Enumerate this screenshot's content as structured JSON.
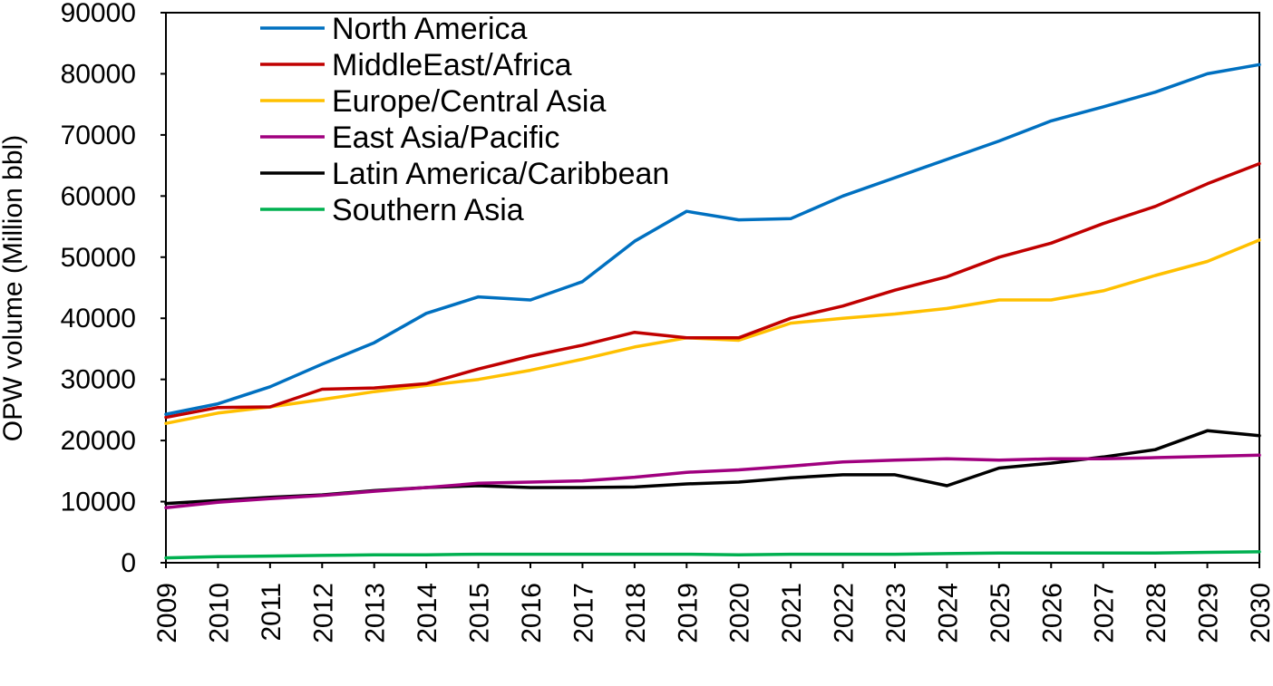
{
  "chart_data": {
    "type": "line",
    "title": "",
    "xlabel": "",
    "ylabel": "OPW volume (Million bbl)",
    "ylim": [
      0,
      90000
    ],
    "yticks": [
      0,
      10000,
      20000,
      30000,
      40000,
      50000,
      60000,
      70000,
      80000,
      90000
    ],
    "x": [
      "2009",
      "2010",
      "2011",
      "2012",
      "2013",
      "2014",
      "2015",
      "2016",
      "2017",
      "2018",
      "2019",
      "2020",
      "2021",
      "2022",
      "2023",
      "2024",
      "2025",
      "2026",
      "2027",
      "2028",
      "2029",
      "2030"
    ],
    "legend_position": "top-left",
    "series": [
      {
        "name": "North America",
        "color": "#0070C0",
        "values": [
          24300,
          26000,
          28800,
          32500,
          36000,
          40800,
          43500,
          43000,
          46000,
          52600,
          57500,
          56100,
          56300,
          60000,
          63000,
          66000,
          69000,
          72300,
          74600,
          77000,
          80000,
          81500
        ]
      },
      {
        "name": "MiddleEast/Africa",
        "color": "#C00000",
        "values": [
          23800,
          25400,
          25500,
          28400,
          28600,
          29300,
          31700,
          33800,
          35600,
          37700,
          36800,
          36800,
          40000,
          42000,
          44600,
          46800,
          50000,
          52300,
          55500,
          58300,
          62000,
          65300
        ]
      },
      {
        "name": "Europe/Central Asia",
        "color": "#FFC000",
        "values": [
          22800,
          24500,
          25500,
          26700,
          28000,
          29000,
          30000,
          31500,
          33300,
          35300,
          36800,
          36400,
          39200,
          40000,
          40700,
          41600,
          43000,
          43000,
          44500,
          47000,
          49300,
          52800
        ]
      },
      {
        "name": "East Asia/Pacific",
        "color": "#A0007F",
        "values": [
          9000,
          9900,
          10500,
          11000,
          11700,
          12300,
          13000,
          13200,
          13400,
          14000,
          14800,
          15200,
          15800,
          16500,
          16800,
          17000,
          16800,
          17000,
          17000,
          17200,
          17400,
          17600
        ]
      },
      {
        "name": "Latin America/Caribbean",
        "color": "#000000",
        "values": [
          9700,
          10200,
          10700,
          11100,
          11800,
          12300,
          12600,
          12300,
          12300,
          12400,
          12900,
          13200,
          13900,
          14400,
          14400,
          12600,
          15500,
          16300,
          17300,
          18500,
          21600,
          20800
        ]
      },
      {
        "name": "Southern Asia",
        "color": "#00B050",
        "values": [
          800,
          1000,
          1100,
          1200,
          1300,
          1300,
          1400,
          1400,
          1400,
          1400,
          1400,
          1300,
          1400,
          1400,
          1400,
          1500,
          1600,
          1600,
          1600,
          1600,
          1700,
          1800
        ]
      }
    ]
  }
}
